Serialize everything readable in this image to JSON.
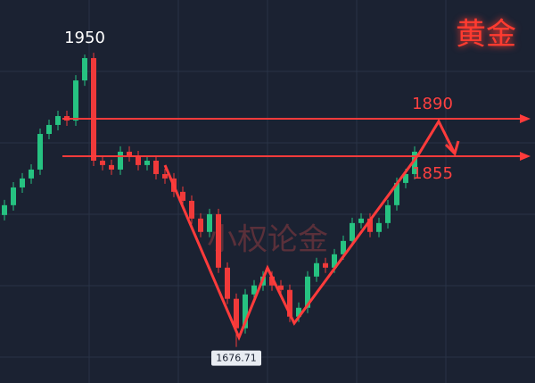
{
  "chart_data": {
    "type": "candlestick",
    "title": "黄金",
    "watermark": "小权论金",
    "open": [
      1800,
      1809.2,
      1825.8,
      1834.2,
      1842.5,
      1875.8,
      1884.2,
      1892.5,
      1888.3,
      1925.8,
      1946.7,
      1850.8,
      1846.7,
      1842.5,
      1859.2,
      1855,
      1846.7,
      1850.8,
      1838.3,
      1834.2,
      1821.7,
      1813.3,
      1796.7,
      1784.2,
      1800.8,
      1750.8,
      1721.7,
      1694.2,
      1725.8,
      1734.2,
      1742.5,
      1734.2,
      1730,
      1705,
      1713.3,
      1742.5,
      1755,
      1750.8,
      1763.3,
      1775.8,
      1792.5,
      1796.7,
      1784.2,
      1792.5,
      1809.2,
      1830,
      1838.3
    ],
    "close": [
      1809.2,
      1825.8,
      1834.2,
      1842.5,
      1875.8,
      1884.2,
      1892.5,
      1888.3,
      1925.8,
      1946.7,
      1850.8,
      1846.7,
      1842.5,
      1859.2,
      1855,
      1846.7,
      1850.8,
      1838.3,
      1834.2,
      1821.7,
      1813.3,
      1796.7,
      1784.2,
      1800.8,
      1750.8,
      1721.7,
      1694.2,
      1725.8,
      1734.2,
      1742.5,
      1734.2,
      1730,
      1705,
      1713.3,
      1742.5,
      1755,
      1750.8,
      1763.3,
      1775.8,
      1792.5,
      1796.7,
      1784.2,
      1792.5,
      1809.2,
      1830,
      1838.3,
      1859.2
    ],
    "high": [
      1814.2,
      1830.8,
      1839.2,
      1847.5,
      1880.8,
      1889.2,
      1897.5,
      1897.5,
      1930.8,
      1950,
      1951.7,
      1855.8,
      1851.7,
      1864.2,
      1864.2,
      1860,
      1855.8,
      1855.8,
      1843.3,
      1839.2,
      1826.7,
      1818.3,
      1801.7,
      1805.8,
      1805.8,
      1755.8,
      1726.7,
      1730.8,
      1739.2,
      1747.5,
      1747.5,
      1739.2,
      1735,
      1718.3,
      1747.5,
      1760,
      1760,
      1768.3,
      1780.8,
      1797.5,
      1801.7,
      1801.7,
      1797.5,
      1814.2,
      1835,
      1843.3,
      1864.2
    ],
    "low": [
      1795,
      1804.2,
      1820.8,
      1829.2,
      1837.5,
      1870.8,
      1879.2,
      1883.3,
      1883.3,
      1920.8,
      1845.8,
      1841.7,
      1837.5,
      1837.5,
      1850,
      1841.7,
      1841.7,
      1833.3,
      1829.2,
      1816.7,
      1808.3,
      1791.7,
      1779.2,
      1779.2,
      1745.8,
      1716.7,
      1676.71,
      1689.2,
      1720.8,
      1729.2,
      1729.2,
      1725,
      1700,
      1700,
      1708.3,
      1737.5,
      1745.8,
      1745.8,
      1758.3,
      1770.8,
      1787.5,
      1779.2,
      1779.2,
      1787.5,
      1804.2,
      1825,
      1833.3
    ],
    "levels": [
      1890,
      1855
    ],
    "up_color": "#26c281",
    "down_color": "#f03a3a",
    "ylim": [
      1643,
      2001
    ]
  }
}
